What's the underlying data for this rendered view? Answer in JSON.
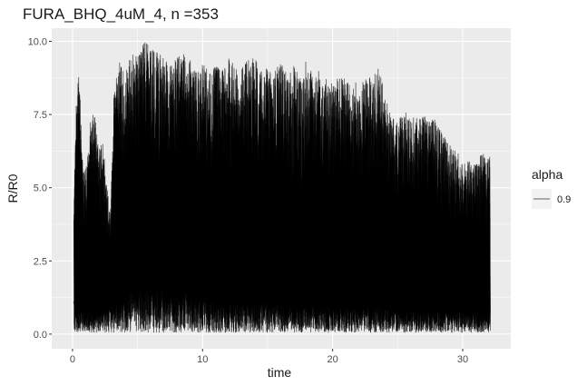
{
  "chart_data": {
    "type": "line",
    "title": "FURA_BHQ_4uM_4, n =353",
    "xlabel": "time",
    "ylabel": "R/R0",
    "xlim": [
      -1.6,
      33.7
    ],
    "ylim": [
      -0.5,
      10.45
    ],
    "x_ticks": [
      0,
      10,
      20,
      30
    ],
    "y_ticks": [
      0.0,
      2.5,
      5.0,
      7.5,
      10.0
    ],
    "y_tick_labels": [
      "0.0",
      "2.5",
      "5.0",
      "7.5",
      "10.0"
    ],
    "grid": true,
    "legend": {
      "title": "alpha",
      "placement": "right",
      "entries": [
        {
          "label": "0.9"
        }
      ]
    },
    "series_color": "#000000",
    "panel_color": "#ebebeb",
    "grid_color": "#ffffff",
    "peak_envelope": [
      [
        0.1,
        4.4
      ],
      [
        0.3,
        8.4
      ],
      [
        0.5,
        9.2
      ],
      [
        0.8,
        5.5
      ],
      [
        1.1,
        5.8
      ],
      [
        1.4,
        7.4
      ],
      [
        1.7,
        7.6
      ],
      [
        2.0,
        6.4
      ],
      [
        2.3,
        6.6
      ],
      [
        2.6,
        5.4
      ],
      [
        2.9,
        4.0
      ],
      [
        3.2,
        8.6
      ],
      [
        3.6,
        9.3
      ],
      [
        4.0,
        9.1
      ],
      [
        4.5,
        9.5
      ],
      [
        5.0,
        9.7
      ],
      [
        5.5,
        10.0
      ],
      [
        6.0,
        9.9
      ],
      [
        6.5,
        9.7
      ],
      [
        7.0,
        9.5
      ],
      [
        7.5,
        9.2
      ],
      [
        8.0,
        9.5
      ],
      [
        8.5,
        9.6
      ],
      [
        9.0,
        9.4
      ],
      [
        9.5,
        9.0
      ],
      [
        10.0,
        9.4
      ],
      [
        10.5,
        8.9
      ],
      [
        11.0,
        9.3
      ],
      [
        11.5,
        9.0
      ],
      [
        12.0,
        9.5
      ],
      [
        12.5,
        9.2
      ],
      [
        13.0,
        9.3
      ],
      [
        13.5,
        9.5
      ],
      [
        14.0,
        9.5
      ],
      [
        14.5,
        9.1
      ],
      [
        15.0,
        9.1
      ],
      [
        15.5,
        9.0
      ],
      [
        16.0,
        9.3
      ],
      [
        16.5,
        8.9
      ],
      [
        17.0,
        9.2
      ],
      [
        17.5,
        8.9
      ],
      [
        18.0,
        9.4
      ],
      [
        18.5,
        8.9
      ],
      [
        19.0,
        9.0
      ],
      [
        19.5,
        8.8
      ],
      [
        20.0,
        8.7
      ],
      [
        20.5,
        8.8
      ],
      [
        21.0,
        8.8
      ],
      [
        21.5,
        8.6
      ],
      [
        22.0,
        8.6
      ],
      [
        22.5,
        8.7
      ],
      [
        23.0,
        8.8
      ],
      [
        23.5,
        9.2
      ],
      [
        24.0,
        8.3
      ],
      [
        24.5,
        7.5
      ],
      [
        25.0,
        7.4
      ],
      [
        25.5,
        7.6
      ],
      [
        26.0,
        7.5
      ],
      [
        26.5,
        7.4
      ],
      [
        27.0,
        7.5
      ],
      [
        27.5,
        7.4
      ],
      [
        28.0,
        7.3
      ],
      [
        28.5,
        6.8
      ],
      [
        29.0,
        6.5
      ],
      [
        29.5,
        6.3
      ],
      [
        30.0,
        6.0
      ],
      [
        30.5,
        5.9
      ],
      [
        31.0,
        5.8
      ],
      [
        31.5,
        6.2
      ],
      [
        32.0,
        6.1
      ]
    ],
    "baseline_envelope": [
      [
        0.1,
        1.0
      ],
      [
        3.0,
        1.0
      ],
      [
        5.0,
        1.9
      ],
      [
        8.0,
        1.6
      ],
      [
        12.0,
        1.3
      ],
      [
        16.0,
        1.2
      ],
      [
        20.0,
        1.1
      ],
      [
        24.0,
        1.0
      ],
      [
        28.0,
        0.9
      ],
      [
        32.0,
        0.85
      ]
    ],
    "x_range": [
      0.1,
      32.1
    ]
  }
}
